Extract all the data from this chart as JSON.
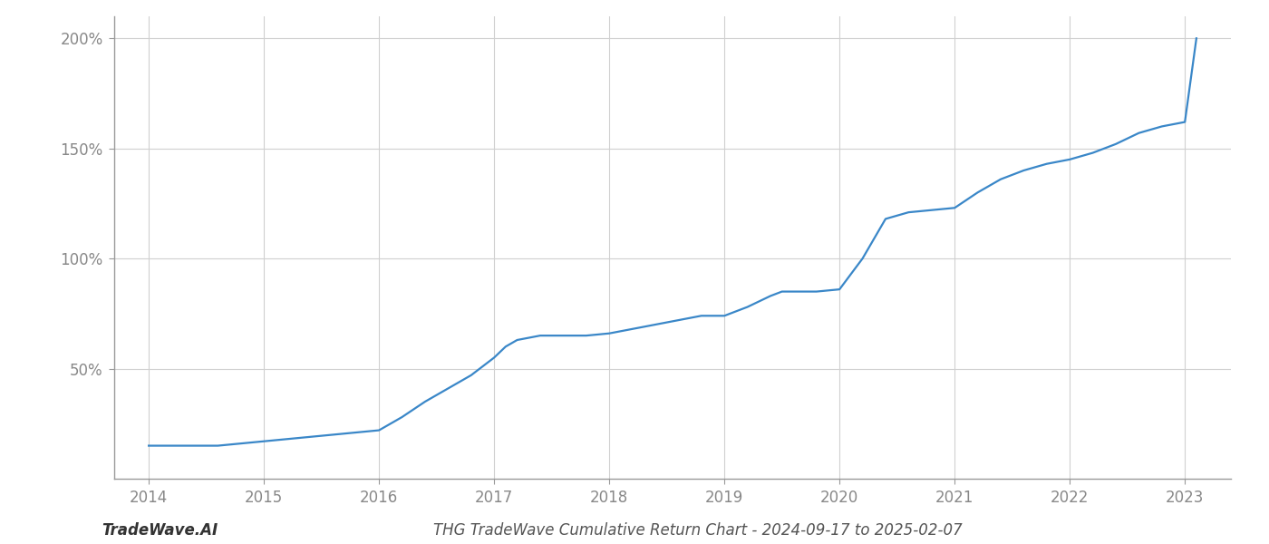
{
  "title": "THG TradeWave Cumulative Return Chart - 2024-09-17 to 2025-02-07",
  "watermark": "TradeWave.AI",
  "line_color": "#3a87c8",
  "background_color": "#ffffff",
  "grid_color": "#d0d0d0",
  "x_years": [
    2014.0,
    2014.1,
    2014.2,
    2014.4,
    2014.6,
    2014.8,
    2015.0,
    2015.2,
    2015.4,
    2015.6,
    2015.8,
    2016.0,
    2016.2,
    2016.4,
    2016.6,
    2016.8,
    2017.0,
    2017.1,
    2017.2,
    2017.4,
    2017.6,
    2017.8,
    2018.0,
    2018.2,
    2018.4,
    2018.6,
    2018.8,
    2019.0,
    2019.2,
    2019.4,
    2019.5,
    2019.6,
    2019.8,
    2020.0,
    2020.2,
    2020.4,
    2020.6,
    2020.8,
    2021.0,
    2021.2,
    2021.4,
    2021.6,
    2021.8,
    2022.0,
    2022.2,
    2022.4,
    2022.6,
    2022.8,
    2023.0,
    2023.1
  ],
  "y_values": [
    15,
    15,
    15,
    15,
    15,
    16,
    17,
    18,
    19,
    20,
    21,
    22,
    28,
    35,
    41,
    47,
    55,
    60,
    63,
    65,
    65,
    65,
    66,
    68,
    70,
    72,
    74,
    74,
    78,
    83,
    85,
    85,
    85,
    86,
    100,
    118,
    121,
    122,
    123,
    130,
    136,
    140,
    143,
    145,
    148,
    152,
    157,
    160,
    162,
    200
  ],
  "ytick_labels": [
    "50%",
    "100%",
    "150%",
    "200%"
  ],
  "ytick_values": [
    50,
    100,
    150,
    200
  ],
  "xtick_labels": [
    "2014",
    "2015",
    "2016",
    "2017",
    "2018",
    "2019",
    "2020",
    "2021",
    "2022",
    "2023"
  ],
  "xtick_values": [
    2014,
    2015,
    2016,
    2017,
    2018,
    2019,
    2020,
    2021,
    2022,
    2023
  ],
  "ylim": [
    0,
    210
  ],
  "xlim": [
    2013.7,
    2023.4
  ],
  "line_width": 1.6,
  "spine_color": "#999999",
  "tick_color": "#888888",
  "tick_fontsize": 12,
  "title_fontsize": 12,
  "watermark_fontsize": 12
}
